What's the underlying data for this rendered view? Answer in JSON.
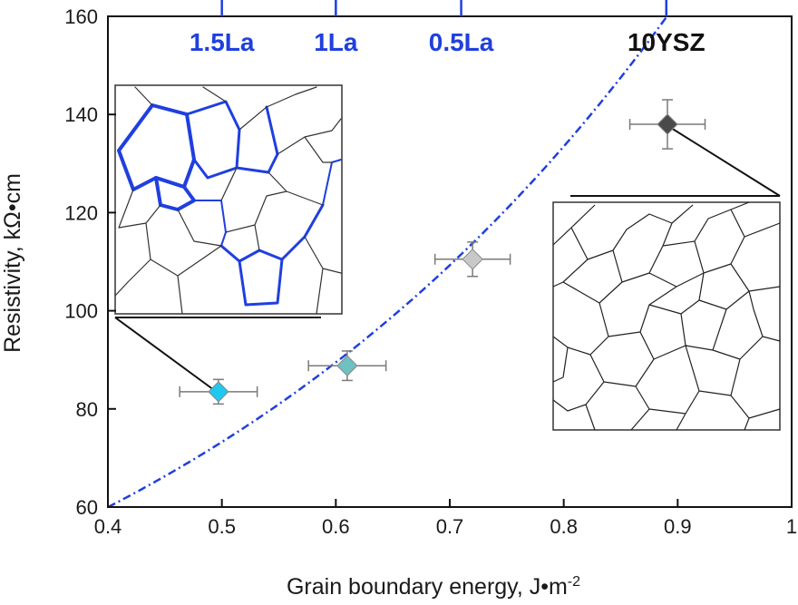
{
  "chart_data": {
    "type": "scatter",
    "xlabel": "Grain boundary energy, J•m",
    "xlabel_sup": "-2",
    "ylabel": "Resistivity, kΩ•cm",
    "xlim": [
      0.4,
      1.0
    ],
    "ylim": [
      60,
      160
    ],
    "x_ticks": [
      "0.4",
      "0.5",
      "0.6",
      "0.7",
      "0.8",
      "0.9",
      "1"
    ],
    "x_tick_values": [
      0.4,
      0.5,
      0.6,
      0.7,
      0.8,
      0.9,
      1.0
    ],
    "y_ticks": [
      "60",
      "80",
      "100",
      "120",
      "140",
      "160"
    ],
    "y_tick_values": [
      60,
      80,
      100,
      120,
      140,
      160
    ],
    "top_axis": [
      {
        "label": "1.5La",
        "x": 0.5,
        "color": "#1f3fe0"
      },
      {
        "label": "1La",
        "x": 0.6,
        "color": "#1f3fe0"
      },
      {
        "label": "0.5La",
        "x": 0.71,
        "color": "#1f3fe0"
      },
      {
        "label": "10YSZ",
        "x": 0.89,
        "color": "#111111"
      }
    ],
    "points": [
      {
        "x": 0.497,
        "y": 83.5,
        "xerr": 0.034,
        "yerr": 2.5,
        "color": "#1ec8ee"
      },
      {
        "x": 0.61,
        "y": 88.8,
        "xerr": 0.034,
        "yerr": 3.0,
        "color": "#6fc0c0"
      },
      {
        "x": 0.72,
        "y": 110.5,
        "xerr": 0.033,
        "yerr": 3.5,
        "color": "#c8c8c8"
      },
      {
        "x": 0.891,
        "y": 138.0,
        "xerr": 0.033,
        "yerr": 5.0,
        "color": "#4a4a4a"
      }
    ],
    "fit": {
      "type": "exponential",
      "a": 26.95,
      "b": 2.0,
      "color": "#1f3fe0",
      "style": "dash-dot"
    },
    "grid": false,
    "insets": [
      {
        "name": "1.5La microstructure",
        "boundary_color": "#1f3fe0",
        "points_to": 0
      },
      {
        "name": "10YSZ microstructure",
        "boundary_color": "#222222",
        "points_to": 3
      }
    ],
    "colors": {
      "axis": "#111111",
      "errorbar": "#7a7a7a",
      "fit": "#1f3fe0"
    }
  }
}
